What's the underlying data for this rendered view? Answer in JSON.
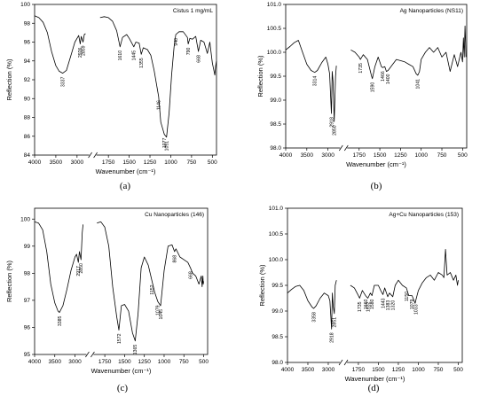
{
  "chart_data": [
    {
      "type": "line",
      "panel_label": "(a)",
      "title": "Cistus 1 mg/mL",
      "xlabel": "Wavenumber (cm⁻¹)",
      "ylabel": "Reflection (%)",
      "x_ticks": [
        4000,
        3500,
        3000,
        1750,
        1500,
        1250,
        1000,
        750,
        500
      ],
      "y_ticks": [
        84,
        86,
        88,
        90,
        92,
        94,
        96,
        98,
        100
      ],
      "ylim": [
        84,
        100
      ],
      "series": [
        {
          "x": [
            4000,
            3900,
            3800,
            3700,
            3600,
            3500,
            3420,
            3337,
            3250,
            3150,
            3050,
            2960,
            2926,
            2900,
            2859,
            2830,
            2800
          ],
          "y": [
            98.8,
            98.6,
            98.1,
            97.0,
            95.0,
            93.5,
            92.9,
            92.7,
            93.0,
            94.5,
            96.0,
            96.7,
            95.8,
            96.6,
            96.0,
            96.8,
            96.9
          ]
        },
        {
          "x": [
            1850,
            1800,
            1750,
            1700,
            1650,
            1610,
            1580,
            1530,
            1500,
            1445,
            1420,
            1380,
            1355,
            1330,
            1280,
            1240,
            1200,
            1146,
            1120,
            1077,
            1051,
            1020,
            990,
            960,
            940,
            900,
            850,
            800,
            790,
            770,
            740,
            700,
            668,
            640,
            600,
            560,
            530,
            500,
            470,
            460,
            450
          ],
          "y": [
            98.6,
            98.7,
            98.6,
            98.2,
            97.2,
            95.5,
            96.5,
            96.8,
            96.4,
            95.5,
            96.0,
            95.9,
            94.7,
            95.4,
            95.2,
            94.6,
            93.0,
            90.2,
            87.5,
            86.2,
            85.9,
            88.5,
            92.5,
            95.5,
            96.8,
            97.1,
            97.1,
            96.5,
            95.8,
            96.4,
            96.3,
            96.6,
            95.0,
            96.2,
            96.0,
            94.8,
            96.0,
            93.8,
            92.5,
            93.5,
            94.0
          ]
        }
      ],
      "peak_labels": [
        {
          "x": 3337,
          "text": "3337"
        },
        {
          "x": 2926,
          "text": "2926"
        },
        {
          "x": 2859,
          "text": "2859"
        },
        {
          "x": 1610,
          "text": "1610"
        },
        {
          "x": 1445,
          "text": "1445"
        },
        {
          "x": 1355,
          "text": "1355"
        },
        {
          "x": 1146,
          "text": "1146"
        },
        {
          "x": 1077,
          "text": "1077"
        },
        {
          "x": 1051,
          "text": "1051"
        },
        {
          "x": 940,
          "text": "940"
        },
        {
          "x": 790,
          "text": "790"
        },
        {
          "x": 668,
          "text": "668"
        }
      ]
    },
    {
      "type": "line",
      "panel_label": "(b)",
      "title": "Ag Nanoparticles (NS11)",
      "xlabel": "Wavenumber (cm⁻¹)",
      "ylabel": "Reflection (%)",
      "x_ticks": [
        4000,
        3500,
        3000,
        1750,
        1500,
        1250,
        1000,
        750,
        500
      ],
      "y_ticks": [
        98.0,
        98.5,
        99.0,
        99.5,
        100.0,
        100.5,
        101.0
      ],
      "ylim": [
        98.0,
        101.0
      ],
      "series": [
        {
          "x": [
            4000,
            3900,
            3800,
            3700,
            3600,
            3500,
            3400,
            3314,
            3250,
            3150,
            3050,
            3000,
            2960,
            2918,
            2900,
            2880,
            2850,
            2820,
            2800
          ],
          "y": [
            100.05,
            100.12,
            100.2,
            100.25,
            100.0,
            99.75,
            99.62,
            99.58,
            99.62,
            99.78,
            99.9,
            99.75,
            99.55,
            98.72,
            99.6,
            99.4,
            98.55,
            99.5,
            99.72
          ]
        },
        {
          "x": [
            1850,
            1800,
            1750,
            1735,
            1700,
            1650,
            1600,
            1590,
            1560,
            1520,
            1480,
            1466,
            1440,
            1420,
            1400,
            1300,
            1200,
            1150,
            1100,
            1060,
            1041,
            1020,
            1000,
            950,
            900,
            850,
            800,
            750,
            700,
            650,
            600,
            560,
            520,
            500,
            490,
            480,
            470,
            465,
            460
          ],
          "y": [
            100.05,
            100.0,
            99.9,
            99.85,
            99.95,
            99.85,
            99.5,
            99.45,
            99.7,
            99.9,
            99.7,
            99.68,
            99.7,
            99.6,
            99.62,
            99.85,
            99.8,
            99.75,
            99.7,
            99.55,
            99.52,
            99.6,
            99.85,
            100.0,
            100.1,
            100.0,
            100.1,
            99.9,
            100.0,
            99.6,
            99.95,
            99.7,
            100.0,
            99.8,
            100.3,
            99.9,
            100.55,
            100.3,
            99.9
          ]
        }
      ],
      "peak_labels": [
        {
          "x": 3314,
          "text": "3314"
        },
        {
          "x": 2918,
          "text": "2918"
        },
        {
          "x": 2850,
          "text": "2850"
        },
        {
          "x": 1735,
          "text": "1735"
        },
        {
          "x": 1590,
          "text": "1590"
        },
        {
          "x": 1466,
          "text": "1466"
        },
        {
          "x": 1400,
          "text": "1400"
        },
        {
          "x": 1041,
          "text": "1041"
        }
      ]
    },
    {
      "type": "line",
      "panel_label": "(c)",
      "title": "Cu Nanoparticles (146)",
      "xlabel": "Wavenumber (cm⁻¹)",
      "ylabel": "Reflection (%)",
      "x_ticks": [
        4000,
        3500,
        3000,
        1750,
        1500,
        1250,
        1000,
        750,
        500
      ],
      "y_ticks": [
        95,
        96,
        97,
        98,
        99,
        100
      ],
      "ylim": [
        95,
        100.4
      ],
      "series": [
        {
          "x": [
            4000,
            3900,
            3800,
            3700,
            3600,
            3500,
            3420,
            3385,
            3300,
            3200,
            3100,
            3000,
            2960,
            2917,
            2890,
            2850,
            2820,
            2800
          ],
          "y": [
            99.9,
            99.85,
            99.6,
            98.8,
            97.6,
            96.9,
            96.6,
            96.55,
            96.8,
            97.4,
            98.1,
            98.6,
            98.7,
            98.4,
            98.8,
            98.5,
            99.5,
            99.8
          ]
        },
        {
          "x": [
            1850,
            1800,
            1750,
            1700,
            1650,
            1600,
            1572,
            1540,
            1500,
            1450,
            1400,
            1365,
            1330,
            1290,
            1250,
            1200,
            1152,
            1120,
            1079,
            1045,
            1000,
            950,
            900,
            868,
            850,
            800,
            750,
            700,
            668,
            640,
            600,
            560,
            530,
            520,
            510,
            505,
            500
          ],
          "y": [
            99.85,
            99.9,
            99.7,
            99.0,
            97.5,
            96.4,
            95.9,
            96.8,
            96.85,
            96.6,
            95.8,
            95.5,
            96.5,
            98.2,
            98.6,
            98.3,
            97.7,
            97.3,
            96.95,
            96.8,
            98.1,
            99.0,
            99.05,
            98.8,
            98.9,
            98.6,
            98.5,
            98.4,
            98.2,
            98.0,
            97.9,
            97.6,
            97.9,
            97.5,
            97.9,
            97.6,
            97.7
          ]
        }
      ],
      "peak_labels": [
        {
          "x": 3385,
          "text": "3385"
        },
        {
          "x": 2917,
          "text": "2917"
        },
        {
          "x": 2850,
          "text": "2850"
        },
        {
          "x": 1572,
          "text": "1572"
        },
        {
          "x": 1365,
          "text": "1365"
        },
        {
          "x": 1152,
          "text": "1152"
        },
        {
          "x": 1079,
          "text": "1079"
        },
        {
          "x": 1045,
          "text": "1045"
        },
        {
          "x": 868,
          "text": "868"
        },
        {
          "x": 668,
          "text": "668"
        }
      ]
    },
    {
      "type": "line",
      "panel_label": "(d)",
      "title": "Ag+Cu Nanoparticles (153)",
      "xlabel": "Wavenumber (cm⁻¹)",
      "ylabel": "Reflection (%)",
      "x_ticks": [
        4000,
        3500,
        3000,
        1750,
        1500,
        1250,
        1000,
        750,
        500
      ],
      "y_ticks": [
        98.0,
        98.5,
        99.0,
        99.5,
        100.0,
        100.5,
        101.0
      ],
      "ylim": [
        98.0,
        101.0
      ],
      "series": [
        {
          "x": [
            4000,
            3900,
            3800,
            3700,
            3600,
            3500,
            3400,
            3358,
            3300,
            3200,
            3100,
            3000,
            2960,
            2918,
            2900,
            2880,
            2851,
            2830,
            2800
          ],
          "y": [
            99.35,
            99.42,
            99.48,
            99.5,
            99.4,
            99.2,
            99.08,
            99.05,
            99.1,
            99.25,
            99.35,
            99.3,
            99.2,
            98.65,
            99.35,
            99.1,
            98.95,
            99.5,
            99.6
          ]
        },
        {
          "x": [
            1850,
            1800,
            1750,
            1735,
            1700,
            1660,
            1632,
            1600,
            1580,
            1550,
            1500,
            1470,
            1443,
            1420,
            1383,
            1360,
            1320,
            1290,
            1250,
            1200,
            1150,
            1120,
            1079,
            1040,
            1033,
            1000,
            950,
            900,
            850,
            800,
            750,
            700,
            680,
            660,
            640,
            600,
            560,
            530,
            510,
            500
          ],
          "y": [
            99.5,
            99.45,
            99.3,
            99.25,
            99.4,
            99.3,
            99.25,
            99.35,
            99.3,
            99.5,
            99.5,
            99.4,
            99.32,
            99.45,
            99.28,
            99.35,
            99.28,
            99.5,
            99.6,
            99.5,
            99.45,
            99.3,
            99.3,
            99.15,
            99.2,
            99.4,
            99.55,
            99.65,
            99.7,
            99.6,
            99.75,
            99.7,
            99.65,
            100.2,
            99.7,
            99.75,
            99.6,
            99.7,
            99.5,
            99.6
          ]
        }
      ],
      "peak_labels": [
        {
          "x": 3358,
          "text": "3358"
        },
        {
          "x": 2918,
          "text": "2918"
        },
        {
          "x": 2851,
          "text": "2851"
        },
        {
          "x": 1735,
          "text": "1735"
        },
        {
          "x": 1660,
          "text": "1660"
        },
        {
          "x": 1632,
          "text": "1632"
        },
        {
          "x": 1580,
          "text": "1580"
        },
        {
          "x": 1443,
          "text": "1443"
        },
        {
          "x": 1383,
          "text": "1383"
        },
        {
          "x": 1320,
          "text": "1320"
        },
        {
          "x": 1150,
          "text": "1150"
        },
        {
          "x": 1079,
          "text": "1079"
        },
        {
          "x": 1033,
          "text": "1033"
        }
      ]
    }
  ]
}
